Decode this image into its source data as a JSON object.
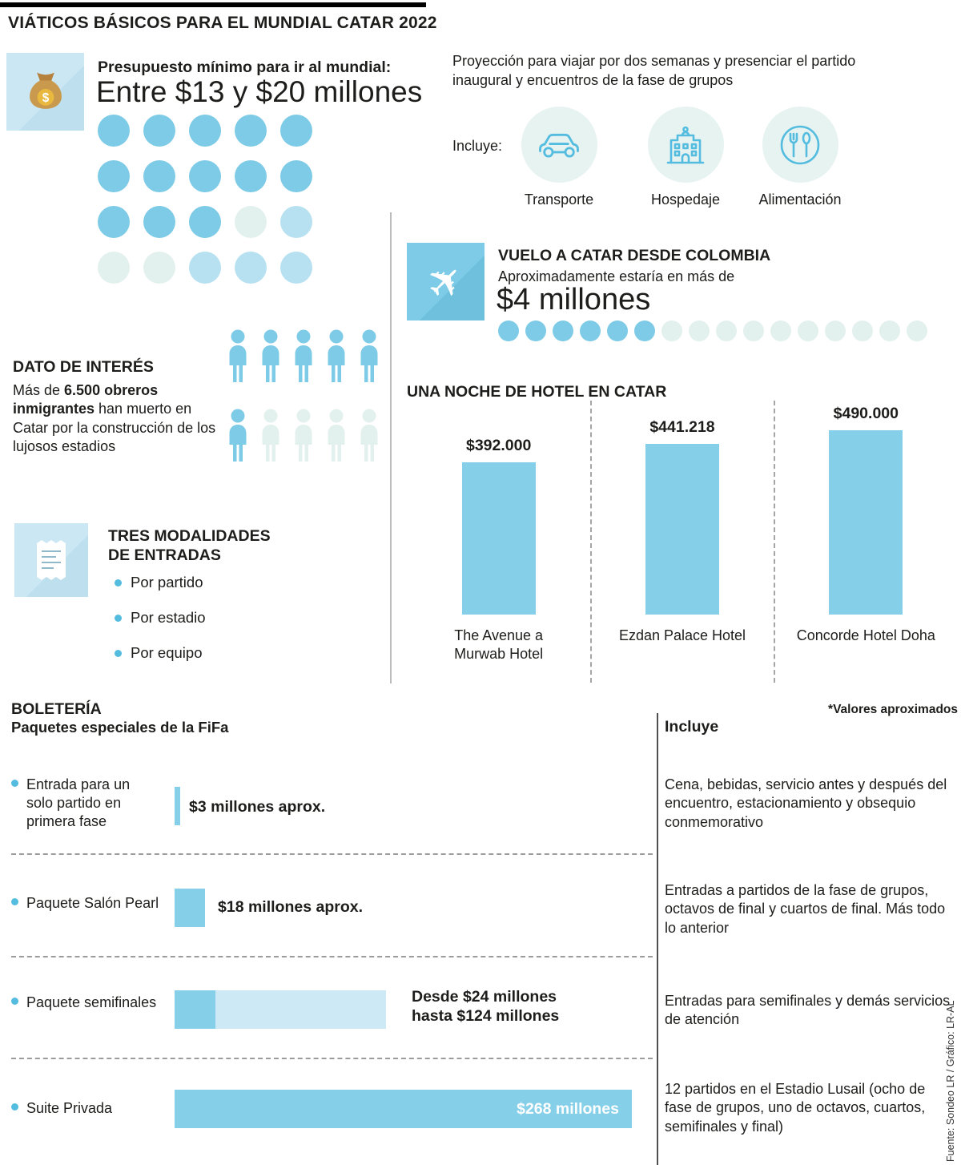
{
  "title": "VIÁTICOS BÁSICOS PARA EL MUNDIAL CATAR 2022",
  "colors": {
    "dark_blue": "#7dcbe6",
    "medium_blue": "#b7e1f1",
    "pale_mint": "#e3f1ee",
    "bar_blue": "#85cfe8",
    "bar_light": "#cde9f5",
    "icon_blue": "#54bcdf",
    "square_light": "#cbe7f3",
    "square_blue": "#7dcbe6"
  },
  "budget": {
    "label": "Presupuesto mínimo para ir al mundial:",
    "value": "Entre $13 y $20 millones",
    "icon": "money-bag-icon",
    "dot_grid": [
      [
        "d",
        "d",
        "d",
        "d",
        "d"
      ],
      [
        "d",
        "d",
        "d",
        "d",
        "d"
      ],
      [
        "d",
        "d",
        "d",
        "p",
        "m"
      ],
      [
        "p",
        "p",
        "m",
        "m",
        "m"
      ]
    ]
  },
  "projection": {
    "text": "Proyección para viajar por dos semanas y presenciar el partido inaugural y encuentros de la fase de grupos",
    "includes_label": "Incluye:",
    "items": [
      {
        "icon": "car-icon",
        "label": "Transporte"
      },
      {
        "icon": "building-icon",
        "label": "Hospedaje"
      },
      {
        "icon": "cutlery-icon",
        "label": "Alimentación"
      }
    ]
  },
  "flight": {
    "icon": "plane-icon",
    "title": "VUELO A CATAR DESDE COLOMBIA",
    "subtitle": "Aproximadamente estaría en más de",
    "value": "$4 millones",
    "dots": [
      "d",
      "d",
      "d",
      "d",
      "d",
      "d",
      "p",
      "p",
      "p",
      "p",
      "p",
      "p",
      "p",
      "p",
      "p",
      "p"
    ]
  },
  "fact": {
    "title": "DATO DE INTERÉS",
    "text_prefix": "Más de ",
    "text_bold": "6.500 obreros inmigrantes",
    "text_suffix": " han muerto en Catar por la construcción de los lujosos estadios",
    "people_rows": [
      [
        "d",
        "d",
        "d",
        "d",
        "d"
      ],
      [
        "d",
        "p",
        "p",
        "p",
        "p"
      ]
    ]
  },
  "tickets": {
    "icon": "receipt-icon",
    "title_line1": "TRES MODALIDADES",
    "title_line2": "DE ENTRADAS",
    "items": [
      "Por partido",
      "Por estadio",
      "Por equipo"
    ]
  },
  "boleteria": {
    "title": "BOLETERÍA",
    "subtitle": "Paquetes especiales de la FiFa",
    "note": "*Valores aproximados",
    "includes_header": "Incluye",
    "rows": [
      {
        "label": "Entrada para un solo partido en primera fase",
        "value_min": 3,
        "value_max": 3,
        "value_label": "$3 millones aprox.",
        "includes": "Cena, bebidas, servicio antes y después del encuentro, estacionamiento y obsequio conmemorativo"
      },
      {
        "label": "Paquete Salón Pearl",
        "value_min": 18,
        "value_max": 18,
        "value_label": "$18 millones aprox.",
        "includes": "Entradas a partidos de la fase de grupos, octavos de final y cuartos de final. Más todo lo anterior"
      },
      {
        "label": "Paquete semifinales",
        "value_min": 24,
        "value_max": 124,
        "value_label": "Desde $24 millones\nhasta $124 millones",
        "includes": "Entradas para semifinales y demás servicios de atención"
      },
      {
        "label": "Suite Privada",
        "value_min": 268,
        "value_max": 268,
        "value_label": "$268 millones",
        "includes": "12 partidos en el Estadio Lusail (ocho de fase de grupos, uno de octavos, cuartos, semifinales y final)"
      }
    ]
  },
  "source": "Fuente: Sondeo LR / Gráfico: LR-AL",
  "chart_data": [
    {
      "type": "bar",
      "title": "UNA NOCHE DE HOTEL EN CATAR",
      "categories": [
        "The Avenue a Murwab Hotel",
        "Ezdan Palace Hotel",
        "Concorde Hotel Doha"
      ],
      "display_labels": [
        "The Avenue a\nMurwab Hotel",
        "Ezdan Palace Hotel",
        "Concorde Hotel Doha"
      ],
      "values": [
        392000,
        441218,
        490000
      ],
      "value_labels": [
        "$392.000",
        "$441.218",
        "$490.000"
      ],
      "ylim": [
        0,
        490000
      ],
      "grid": false,
      "legend": "none",
      "unit": "pesos por noche"
    },
    {
      "type": "bar",
      "orientation": "horizontal",
      "title": "BOLETERÍA — Paquetes especiales de la FiFa",
      "categories": [
        "Entrada para un solo partido en primera fase",
        "Paquete Salón Pearl",
        "Paquete semifinales",
        "Suite Privada"
      ],
      "values_min": [
        3,
        18,
        24,
        268
      ],
      "values_max": [
        3,
        18,
        124,
        268
      ],
      "value_labels": [
        "$3 millones aprox.",
        "$18 millones aprox.",
        "Desde $24 millones hasta $124 millones",
        "$268 millones"
      ],
      "unit": "millones de pesos",
      "note": "*Valores aproximados"
    }
  ]
}
